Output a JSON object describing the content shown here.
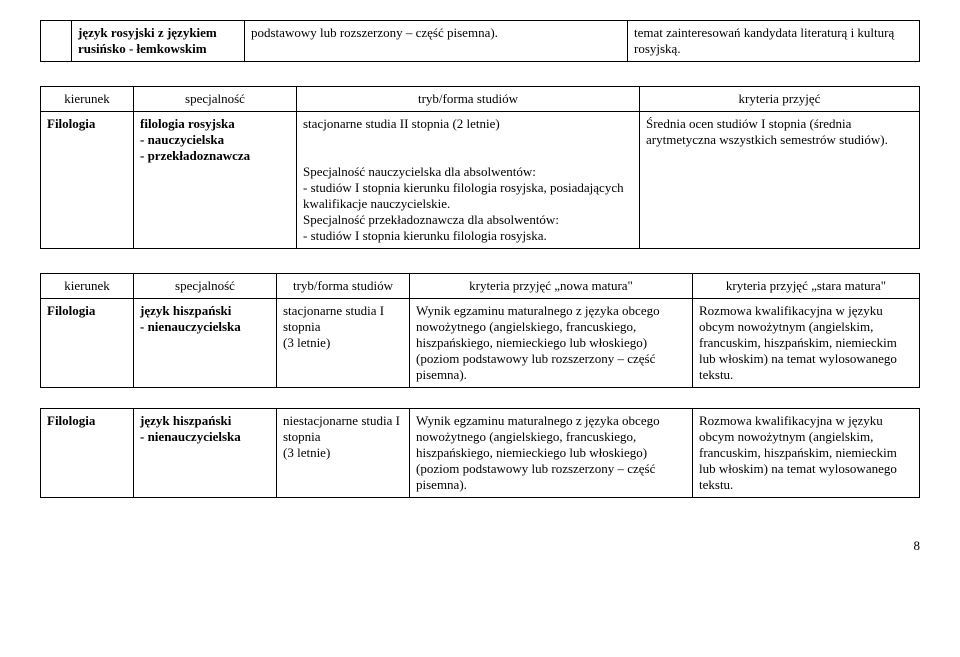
{
  "table1": {
    "row": {
      "col2": "język rosyjski z językiem rusińsko - łemkowskim",
      "col3": "podstawowy lub rozszerzony – część pisemna).",
      "col4": "temat zainteresowań kandydata literaturą i kulturą rosyjską."
    }
  },
  "table2": {
    "headers": {
      "h1": "kierunek",
      "h2": "specjalność",
      "h3": "tryb/forma studiów",
      "h4": "kryteria przyjęć"
    },
    "row": {
      "c1": "Filologia",
      "c2": "filologia rosyjska\n- nauczycielska\n- przekładoznawcza",
      "c3": "stacjonarne studia II stopnia (2 letnie)\n\nSpecjalność nauczycielska dla absolwentów:\n- studiów I stopnia kierunku filologia rosyjska, posiadających kwalifikacje nauczycielskie.\nSpecjalność przekładoznawcza dla absolwentów:\n- studiów I stopnia kierunku filologia rosyjska.",
      "c4": "Średnia ocen studiów I stopnia (średnia arytmetyczna wszystkich semestrów studiów)."
    }
  },
  "table3": {
    "headers": {
      "h1": "kierunek",
      "h2": "specjalność",
      "h3": "tryb/forma studiów",
      "h4": "kryteria przyjęć „nowa matura\"",
      "h5": "kryteria przyjęć „stara matura\""
    },
    "row1": {
      "c1": "Filologia",
      "c2": "język hiszpański\n- nienauczycielska",
      "c3": "stacjonarne studia I stopnia\n(3 letnie)",
      "c4": "Wynik egzaminu maturalnego z języka obcego nowożytnego (angielskiego, francuskiego, hiszpańskiego, niemieckiego lub włoskiego) (poziom podstawowy lub rozszerzony – część pisemna).",
      "c5": "Rozmowa kwalifikacyjna w języku obcym nowożytnym (angielskim, francuskim, hiszpańskim, niemieckim lub włoskim) na temat wylosowanego tekstu."
    },
    "row2": {
      "c1": "Filologia",
      "c2": "język hiszpański\n- nienauczycielska",
      "c3": "niestacjonarne studia I stopnia\n(3 letnie)",
      "c4": "Wynik egzaminu maturalnego z języka obcego nowożytnego (angielskiego, francuskiego, hiszpańskiego, niemieckiego lub włoskiego) (poziom podstawowy lub rozszerzony – część pisemna).",
      "c5": "Rozmowa kwalifikacyjna w języku obcym nowożytnym (angielskim, francuskim, hiszpańskim, niemieckim lub włoskim) na temat wylosowanego tekstu."
    }
  },
  "page_number": "8"
}
